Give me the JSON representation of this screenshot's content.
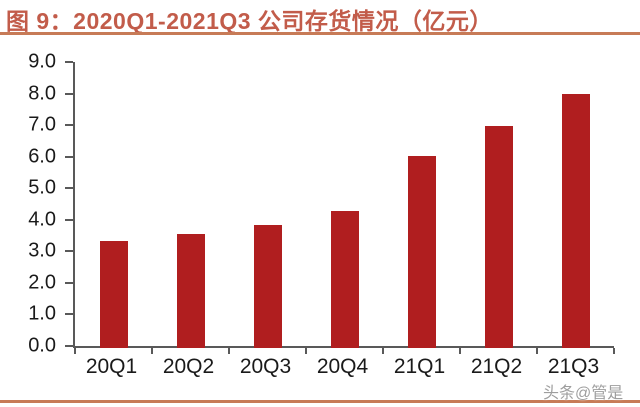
{
  "header": {
    "title": "图 9：2020Q1-2021Q3 公司存货情况（亿元）"
  },
  "colors": {
    "title": "#c25c4a",
    "rule": "#c77b57",
    "bar": "#b01e1f",
    "axis": "#595959",
    "tick_label": "#1a1a1a",
    "watermark": "#9e9e9e"
  },
  "chart_data": {
    "type": "bar",
    "title": "图 9：2020Q1-2021Q3 公司存货情况（亿元）",
    "categories": [
      "20Q1",
      "20Q2",
      "20Q3",
      "20Q4",
      "21Q1",
      "21Q2",
      "21Q3"
    ],
    "values": [
      3.4,
      3.6,
      3.9,
      4.35,
      6.1,
      7.05,
      8.05
    ],
    "xlabel": "",
    "ylabel": "",
    "ylim": [
      0,
      9
    ],
    "ytick_step": 1.0,
    "ytick_labels": [
      "0.0",
      "1.0",
      "2.0",
      "3.0",
      "4.0",
      "5.0",
      "6.0",
      "7.0",
      "8.0",
      "9.0"
    ],
    "grid": false,
    "legend_position": "none",
    "bar_color": "#b01e1f"
  },
  "watermark": {
    "text": "头条@管是"
  }
}
